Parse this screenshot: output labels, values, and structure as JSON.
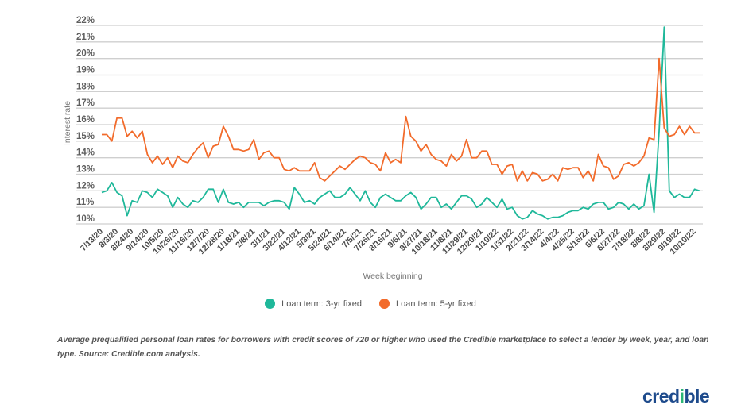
{
  "chart_data": {
    "type": "line",
    "title": "",
    "xlabel": "Week beginning",
    "ylabel": "Interest rate",
    "ylim": [
      10,
      22
    ],
    "y_ticks": [
      "10%",
      "11%",
      "12%",
      "13%",
      "14%",
      "15%",
      "16%",
      "17%",
      "18%",
      "19%",
      "20%",
      "21%",
      "22%"
    ],
    "grid": true,
    "legend_position": "bottom",
    "x": [
      "7/13/20",
      "7/20/20",
      "7/27/20",
      "8/3/20",
      "8/10/20",
      "8/17/20",
      "8/24/20",
      "8/31/20",
      "9/7/20",
      "9/14/20",
      "9/21/20",
      "9/28/20",
      "10/5/20",
      "10/12/20",
      "10/19/20",
      "10/26/20",
      "11/2/20",
      "11/9/20",
      "11/16/20",
      "11/23/20",
      "11/30/20",
      "12/7/20",
      "12/14/20",
      "12/21/20",
      "12/28/20",
      "1/4/21",
      "1/11/21",
      "1/18/21",
      "1/25/21",
      "2/1/21",
      "2/8/21",
      "2/15/21",
      "2/22/21",
      "3/1/21",
      "3/8/21",
      "3/15/21",
      "3/22/21",
      "3/29/21",
      "4/5/21",
      "4/12/21",
      "4/19/21",
      "4/26/21",
      "5/3/21",
      "5/10/21",
      "5/17/21",
      "5/24/21",
      "5/31/21",
      "6/7/21",
      "6/14/21",
      "6/21/21",
      "6/28/21",
      "7/5/21",
      "7/12/21",
      "7/19/21",
      "7/26/21",
      "8/2/21",
      "8/9/21",
      "8/16/21",
      "8/23/21",
      "8/30/21",
      "9/6/21",
      "9/13/21",
      "9/20/21",
      "9/27/21",
      "10/4/21",
      "10/11/21",
      "10/18/21",
      "10/25/21",
      "11/1/21",
      "11/8/21",
      "11/15/21",
      "11/22/21",
      "11/29/21",
      "12/6/21",
      "12/13/21",
      "12/20/21",
      "12/27/21",
      "1/3/22",
      "1/10/22",
      "1/17/22",
      "1/24/22",
      "1/31/22",
      "2/7/22",
      "2/14/22",
      "2/21/22",
      "2/28/22",
      "3/7/22",
      "3/14/22",
      "3/21/22",
      "3/28/22",
      "4/4/22",
      "4/11/22",
      "4/18/22",
      "4/25/22",
      "5/2/22",
      "5/9/22",
      "5/16/22",
      "5/23/22",
      "5/30/22",
      "6/6/22",
      "6/13/22",
      "6/20/22",
      "6/27/22",
      "7/4/22",
      "7/11/22",
      "7/18/22",
      "7/25/22",
      "8/1/22",
      "8/8/22",
      "8/15/22",
      "8/22/22",
      "8/29/22",
      "9/5/22",
      "9/12/22",
      "9/19/22",
      "9/26/22",
      "10/3/22",
      "10/10/22",
      "10/17/22"
    ],
    "x_tick_labels": [
      "7/13/20",
      "8/3/20",
      "8/24/20",
      "9/14/20",
      "10/5/20",
      "10/26/20",
      "11/16/20",
      "12/7/20",
      "12/28/20",
      "1/18/21",
      "2/8/21",
      "3/1/21",
      "3/22/21",
      "4/12/21",
      "5/3/21",
      "5/24/21",
      "6/14/21",
      "7/5/21",
      "7/26/21",
      "8/16/21",
      "9/6/21",
      "9/27/21",
      "10/18/21",
      "11/8/21",
      "11/29/21",
      "12/20/21",
      "1/10/22",
      "1/31/22",
      "2/21/22",
      "3/14/22",
      "4/4/22",
      "4/25/22",
      "5/16/22",
      "6/6/22",
      "6/27/22",
      "7/18/22",
      "8/8/22",
      "8/29/22",
      "9/19/22",
      "10/10/22"
    ],
    "series": [
      {
        "name": "Loan term: 3-yr fixed",
        "color": "#1fb89a",
        "values": [
          11.9,
          12.0,
          12.5,
          11.9,
          11.7,
          10.5,
          11.4,
          11.3,
          12.0,
          11.9,
          11.6,
          12.1,
          11.9,
          11.7,
          11.0,
          11.6,
          11.2,
          11.0,
          11.4,
          11.3,
          11.6,
          12.1,
          12.1,
          11.3,
          12.1,
          11.3,
          11.2,
          11.3,
          11.0,
          11.3,
          11.3,
          11.3,
          11.1,
          11.3,
          11.4,
          11.4,
          11.3,
          10.9,
          12.2,
          11.8,
          11.3,
          11.4,
          11.2,
          11.6,
          11.8,
          12.0,
          11.6,
          11.6,
          11.8,
          12.2,
          11.8,
          11.4,
          12.0,
          11.3,
          11.0,
          11.6,
          11.8,
          11.6,
          11.4,
          11.4,
          11.7,
          11.9,
          11.6,
          10.9,
          11.2,
          11.6,
          11.6,
          11.0,
          11.2,
          10.9,
          11.3,
          11.7,
          11.7,
          11.5,
          11.0,
          11.2,
          11.6,
          11.3,
          11.0,
          11.5,
          10.9,
          11.0,
          10.5,
          10.3,
          10.4,
          10.8,
          10.6,
          10.5,
          10.3,
          10.4,
          10.4,
          10.5,
          10.7,
          10.8,
          10.8,
          11.0,
          10.9,
          11.2,
          11.3,
          11.3,
          10.9,
          11.0,
          11.3,
          11.2,
          10.9,
          11.2,
          10.9,
          11.1,
          13.0,
          10.7,
          15.6,
          21.9,
          12.0,
          11.6,
          11.8,
          11.6,
          11.6,
          12.1,
          12.0
        ]
      },
      {
        "name": "Loan term: 5-yr fixed",
        "color": "#f26b2b",
        "values": [
          15.4,
          15.4,
          15.0,
          16.4,
          16.4,
          15.3,
          15.6,
          15.2,
          15.6,
          14.2,
          13.7,
          14.1,
          13.6,
          14.0,
          13.4,
          14.1,
          13.8,
          13.7,
          14.2,
          14.6,
          14.9,
          14.0,
          14.7,
          14.8,
          15.9,
          15.3,
          14.5,
          14.5,
          14.4,
          14.5,
          15.1,
          13.9,
          14.3,
          14.4,
          14.0,
          14.0,
          13.3,
          13.2,
          13.4,
          13.2,
          13.2,
          13.2,
          13.7,
          12.8,
          12.6,
          12.9,
          13.2,
          13.5,
          13.3,
          13.6,
          13.9,
          14.1,
          14.0,
          13.7,
          13.6,
          13.2,
          14.3,
          13.7,
          13.9,
          13.7,
          16.5,
          15.3,
          15.0,
          14.4,
          14.8,
          14.2,
          13.9,
          13.8,
          13.5,
          14.2,
          13.8,
          14.1,
          15.1,
          14.0,
          14.0,
          14.4,
          14.4,
          13.6,
          13.6,
          13.0,
          13.5,
          13.6,
          12.6,
          13.2,
          12.6,
          13.1,
          13.0,
          12.6,
          12.7,
          13.0,
          12.6,
          13.4,
          13.3,
          13.4,
          13.4,
          12.8,
          13.2,
          12.6,
          14.2,
          13.5,
          13.4,
          12.7,
          12.9,
          13.6,
          13.7,
          13.5,
          13.7,
          14.1,
          15.2,
          15.1,
          20.0,
          15.8,
          15.3,
          15.4,
          15.9,
          15.4,
          15.9,
          15.5,
          15.5
        ]
      }
    ]
  },
  "caption": "Average prequalified personal loan rates for borrowers with credit scores of 720 or higher who used the Credible marketplace to select a lender by week, year, and loan type. Source: Credible.com analysis.",
  "logo": {
    "text": "credible"
  }
}
